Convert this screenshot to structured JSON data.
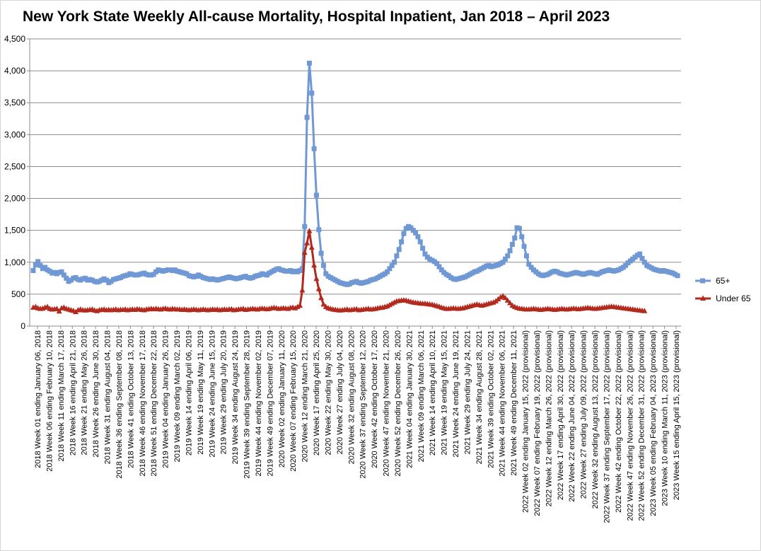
{
  "chart_data": {
    "type": "line",
    "title": "New York State Weekly All-cause Mortality, Hospital Inpatient, Jan 2018 – April 2023",
    "xlabel": "",
    "ylabel": "",
    "ylim": [
      0,
      4500
    ],
    "yticks": [
      "0",
      "500",
      "1,000",
      "1,500",
      "2,000",
      "2,500",
      "3,000",
      "3,500",
      "4,000",
      "4,500"
    ],
    "grid": true,
    "legend_position": "right",
    "x_tick_labels": [
      "2018 Week 01 ending January 06, 2018",
      "2018 Week 06 ending February 10, 2018",
      "2018 Week 11 ending March 17, 2018",
      "2018 Week 16 ending April 21, 2018",
      "2018 Week 21 ending May 26, 2018",
      "2018 Week 26 ending June 30, 2018",
      "2018 Week 31 ending August 04, 2018",
      "2018 Week 36 ending September 08, 2018",
      "2018 Week 41 ending October 13, 2018",
      "2018 Week 46 ending November 17, 2018",
      "2018 Week 51 ending December 22, 2018",
      "2019 Week 04 ending January 26, 2019",
      "2019 Week 09 ending March 02, 2019",
      "2019 Week 14 ending April 06, 2019",
      "2019 Week 19 ending May 11, 2019",
      "2019 Week 24 ending June 15, 2019",
      "2019 Week 29 ending July 20, 2019",
      "2019 Week 34 ending August 24, 2019",
      "2019 Week 39 ending September 28, 2019",
      "2019 Week 44 ending November 02, 2019",
      "2019 Week 49 ending December 07, 2019",
      "2020 Week 02 ending January 11, 2020",
      "2020 Week 07 ending February 15, 2020",
      "2020 Week 12 ending March 21, 2020",
      "2020 Week 17 ending April 25, 2020",
      "2020 Week 22 ending May 30, 2020",
      "2020 Week 27 ending July 04, 2020",
      "2020 Week 32 ending August 08, 2020",
      "2020 Week 37 ending September 12, 2020",
      "2020 Week 42 ending October 17, 2020",
      "2020 Week 47 ending November 21, 2020",
      "2020 Week 52 ending December 26, 2020",
      "2021 Week 04 ending January 30, 2021",
      "2021 Week 09 ending March 06, 2021",
      "2021 Week 14 ending April 10, 2021",
      "2021 Week 19 ending May 15, 2021",
      "2021 Week 24 ending June 19, 2021",
      "2021 Week 29 ending July 24, 2021",
      "2021 Week 34 ending August 28, 2021",
      "2021 Week 39 ending October 02, 2021",
      "2021 Week 44 ending November 06, 2021",
      "2021 Week 49 ending December 11, 2021",
      "2022 Week 02 ending January 15, 2022 (provisional)",
      "2022 Week 07 ending February 19, 2022 (provisional)",
      "2022 Week 12 ending March 26, 2022 (provisional)",
      "2022 Week 17 ending April 30, 2022 (provisional)",
      "2022 Week 22 ending June 04, 2022 (provisional)",
      "2022 Week 27 ending July 09, 2022 (provisional)",
      "2022 Week 32 ending August 13, 2022 (provisional)",
      "2022 Week 37 ending September 17, 2022 (provisional)",
      "2022 Week 42 ending October 22, 2022 (provisional)",
      "2022 Week 47 ending November 26, 2022 (provisional)",
      "2022 Week 52 ending December 31, 2022 (provisional)",
      "2023 Week 05 ending February 04, 2023 (provisional)",
      "2023 Week 10 ending March 11, 2023 (provisional)",
      "2023 Week 15 ending April 15, 2023 (provisional)"
    ],
    "series": [
      {
        "name": "65+",
        "color": "#6f98d4",
        "marker": "square",
        "values": [
          870,
          960,
          1010,
          950,
          900,
          920,
          880,
          860,
          830,
          840,
          820,
          840,
          850,
          800,
          750,
          700,
          720,
          750,
          760,
          730,
          720,
          740,
          750,
          720,
          730,
          720,
          700,
          690,
          700,
          720,
          740,
          720,
          680,
          700,
          730,
          740,
          750,
          760,
          780,
          790,
          800,
          820,
          810,
          800,
          800,
          810,
          820,
          830,
          810,
          800,
          800,
          810,
          850,
          880,
          870,
          860,
          870,
          880,
          880,
          870,
          880,
          860,
          850,
          840,
          830,
          820,
          790,
          780,
          770,
          780,
          800,
          780,
          760,
          750,
          740,
          730,
          740,
          730,
          720,
          730,
          740,
          750,
          760,
          770,
          760,
          750,
          740,
          750,
          760,
          770,
          780,
          760,
          750,
          760,
          780,
          790,
          800,
          820,
          810,
          800,
          830,
          850,
          870,
          890,
          900,
          880,
          870,
          860,
          860,
          870,
          850,
          860,
          850,
          870,
          900,
          1560,
          3270,
          4120,
          3650,
          2780,
          2050,
          1510,
          1140,
          950,
          820,
          780,
          760,
          740,
          720,
          700,
          680,
          670,
          660,
          650,
          660,
          680,
          690,
          700,
          680,
          670,
          680,
          690,
          700,
          720,
          730,
          740,
          760,
          780,
          800,
          820,
          850,
          900,
          950,
          1000,
          1100,
          1200,
          1320,
          1450,
          1530,
          1560,
          1540,
          1500,
          1460,
          1400,
          1320,
          1220,
          1130,
          1080,
          1050,
          1030,
          1010,
          980,
          930,
          880,
          840,
          810,
          790,
          760,
          740,
          730,
          740,
          750,
          760,
          770,
          790,
          810,
          830,
          850,
          860,
          880,
          900,
          920,
          940,
          950,
          930,
          940,
          950,
          960,
          980,
          1000,
          1050,
          1100,
          1180,
          1280,
          1380,
          1540,
          1530,
          1400,
          1250,
          1100,
          970,
          920,
          880,
          850,
          820,
          800,
          790,
          800,
          810,
          830,
          850,
          860,
          850,
          830,
          820,
          810,
          800,
          810,
          820,
          830,
          840,
          830,
          820,
          810,
          820,
          830,
          840,
          830,
          820,
          810,
          830,
          850,
          860,
          870,
          880,
          870,
          860,
          870,
          880,
          900,
          920,
          950,
          990,
          1020,
          1050,
          1080,
          1110,
          1130,
          1060,
          1000,
          950,
          930,
          910,
          890,
          880,
          870,
          860,
          870,
          860,
          850,
          840,
          830,
          810,
          790
        ]
      },
      {
        "name": "Under 65",
        "color": "#b22a1e",
        "marker": "triangle",
        "values": [
          290,
          300,
          280,
          270,
          275,
          290,
          300,
          270,
          260,
          265,
          270,
          230,
          280,
          290,
          270,
          260,
          250,
          240,
          220,
          250,
          260,
          250,
          245,
          250,
          255,
          260,
          245,
          235,
          250,
          255,
          260,
          250,
          255,
          250,
          255,
          260,
          250,
          255,
          255,
          260,
          250,
          255,
          260,
          255,
          265,
          260,
          255,
          250,
          260,
          265,
          270,
          265,
          270,
          265,
          260,
          270,
          275,
          265,
          260,
          270,
          265,
          260,
          260,
          255,
          260,
          255,
          250,
          255,
          260,
          255,
          250,
          255,
          260,
          255,
          250,
          255,
          260,
          255,
          260,
          250,
          255,
          260,
          255,
          260,
          265,
          250,
          255,
          260,
          265,
          270,
          255,
          260,
          265,
          270,
          265,
          260,
          270,
          275,
          270,
          265,
          270,
          280,
          285,
          280,
          270,
          275,
          280,
          275,
          270,
          285,
          290,
          280,
          300,
          320,
          560,
          1150,
          1300,
          1490,
          1230,
          950,
          740,
          580,
          440,
          340,
          300,
          280,
          270,
          260,
          255,
          250,
          245,
          250,
          255,
          260,
          250,
          255,
          260,
          265,
          250,
          255,
          260,
          265,
          270,
          260,
          265,
          270,
          280,
          285,
          290,
          300,
          310,
          330,
          350,
          370,
          390,
          395,
          400,
          405,
          400,
          390,
          380,
          370,
          365,
          360,
          355,
          350,
          350,
          345,
          340,
          335,
          325,
          315,
          305,
          290,
          280,
          270,
          270,
          275,
          280,
          275,
          270,
          275,
          280,
          290,
          300,
          310,
          320,
          330,
          340,
          330,
          320,
          330,
          340,
          350,
          360,
          370,
          390,
          420,
          450,
          470,
          440,
          400,
          360,
          320,
          300,
          285,
          275,
          270,
          265,
          260,
          260,
          265,
          270,
          265,
          260,
          255,
          260,
          265,
          270,
          265,
          260,
          255,
          260,
          265,
          270,
          265,
          260,
          265,
          270,
          275,
          270,
          265,
          270,
          275,
          280,
          285,
          280,
          275,
          270,
          275,
          280,
          285,
          290,
          295,
          300,
          305,
          300,
          295,
          290,
          285,
          280,
          275,
          270,
          265,
          260,
          255,
          250,
          245,
          240,
          235
        ]
      }
    ]
  }
}
